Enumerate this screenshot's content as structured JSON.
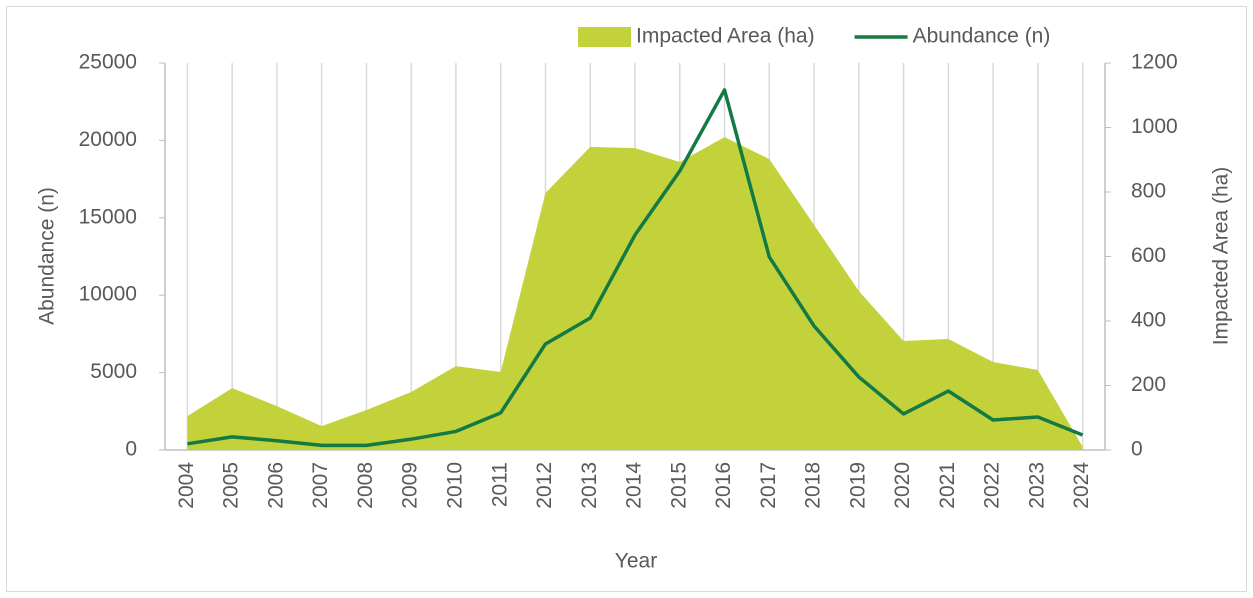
{
  "chart_data": {
    "type": "combo",
    "x_label": "Year",
    "y_label": "Abundance (n)",
    "y2_label": "Impacted Area (ha)",
    "categories": [
      "2004",
      "2005",
      "2006",
      "2007",
      "2008",
      "2009",
      "2010",
      "2011",
      "2012",
      "2013",
      "2014",
      "2015",
      "2016",
      "2017",
      "2018",
      "2019",
      "2020",
      "2021",
      "2022",
      "2023",
      "2024"
    ],
    "series": [
      {
        "name": "Impacted Area (ha)",
        "type": "area",
        "axis": "y2",
        "color": "#c3d23a",
        "values": [
          105,
          192,
          136,
          74,
          124,
          180,
          260,
          242,
          797,
          940,
          936,
          893,
          970,
          902,
          698,
          493,
          338,
          344,
          273,
          248,
          10
        ]
      },
      {
        "name": "Abundance (n)",
        "type": "line",
        "axis": "y",
        "color": "#137a44",
        "values": [
          400,
          850,
          600,
          300,
          300,
          700,
          1200,
          2400,
          6850,
          8530,
          13890,
          18020,
          23260,
          12470,
          8010,
          4720,
          2330,
          3810,
          1940,
          2130,
          970
        ]
      }
    ],
    "ylim": [
      0,
      25000
    ],
    "yticks": [
      0,
      5000,
      10000,
      15000,
      20000,
      25000
    ],
    "y2lim": [
      0,
      1200
    ],
    "y2ticks": [
      0,
      200,
      400,
      600,
      800,
      1000,
      1200
    ],
    "grid": true,
    "legend": "top"
  }
}
